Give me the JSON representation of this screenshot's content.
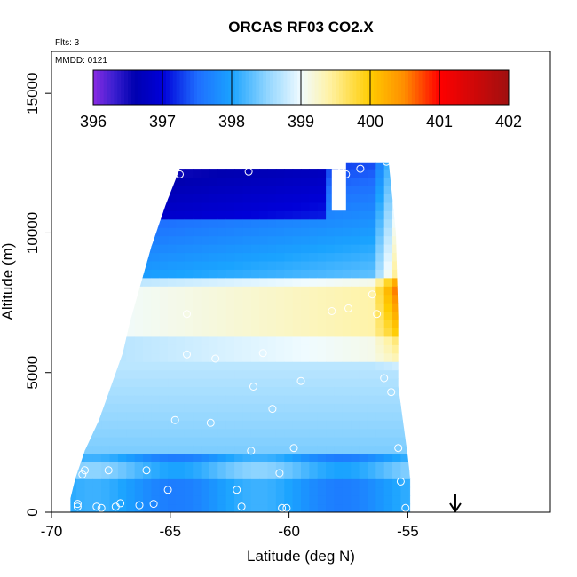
{
  "chart_data": {
    "type": "heatmap",
    "title": "ORCAS RF03 CO2.X",
    "subtitle_flights": "Flts: 3",
    "subtitle_date": "MMDD: 0121",
    "xlabel": "Latitude (deg N)",
    "ylabel": "Altitude (m)",
    "xlim": [
      -70,
      -49
    ],
    "ylim": [
      0,
      16500
    ],
    "x_ticks": [
      -70,
      -65,
      -60,
      -55
    ],
    "x_tick_labels": [
      "-70",
      "-65",
      "-60",
      "-55"
    ],
    "y_ticks": [
      0,
      5000,
      10000,
      15000
    ],
    "y_tick_labels": [
      "0",
      "5000",
      "10000",
      "15000"
    ],
    "colorbar": {
      "min": 396,
      "max": 402,
      "ticks": [
        396,
        397,
        398,
        399,
        400,
        401,
        402
      ],
      "tick_labels": [
        "396",
        "397",
        "398",
        "399",
        "400",
        "401",
        "402"
      ],
      "colors": [
        {
          "value": 396.0,
          "color": "#8a2be2"
        },
        {
          "value": 396.3,
          "color": "#3a1fd0"
        },
        {
          "value": 396.6,
          "color": "#0000b0"
        },
        {
          "value": 397.0,
          "color": "#0000d8"
        },
        {
          "value": 397.5,
          "color": "#1f6dff"
        },
        {
          "value": 398.0,
          "color": "#1aa3ff"
        },
        {
          "value": 398.5,
          "color": "#8ed4ff"
        },
        {
          "value": 399.0,
          "color": "#f0fbff"
        },
        {
          "value": 399.4,
          "color": "#fff3a8"
        },
        {
          "value": 400.0,
          "color": "#ffcc00"
        },
        {
          "value": 400.5,
          "color": "#ff8c00"
        },
        {
          "value": 401.0,
          "color": "#ff0000"
        },
        {
          "value": 402.0,
          "color": "#a01010"
        }
      ]
    },
    "field_boundary": [
      [
        -69.2,
        0
      ],
      [
        -69.2,
        500
      ],
      [
        -69.0,
        1200
      ],
      [
        -68.6,
        2200
      ],
      [
        -68.0,
        3300
      ],
      [
        -67.5,
        4500
      ],
      [
        -67.0,
        5700
      ],
      [
        -66.7,
        6800
      ],
      [
        -66.3,
        8000
      ],
      [
        -65.8,
        9500
      ],
      [
        -65.2,
        11000
      ],
      [
        -64.6,
        12300
      ],
      [
        -57.6,
        12300
      ],
      [
        -57.6,
        12500
      ],
      [
        -55.8,
        12500
      ],
      [
        -55.5,
        10000
      ],
      [
        -55.4,
        7000
      ],
      [
        -55.4,
        4500
      ],
      [
        -55.0,
        2000
      ],
      [
        -54.9,
        1200
      ],
      [
        -54.9,
        0
      ]
    ],
    "high_notch": [
      [
        -58.2,
        12300
      ],
      [
        -57.6,
        12300
      ],
      [
        -57.6,
        10800
      ],
      [
        -58.2,
        10800
      ]
    ],
    "arrow_latitude": -53,
    "sample_points": [
      [
        -68.9,
        200
      ],
      [
        -68.9,
        300
      ],
      [
        -68.1,
        200
      ],
      [
        -67.9,
        150
      ],
      [
        -67.3,
        200
      ],
      [
        -67.1,
        320
      ],
      [
        -66.3,
        250
      ],
      [
        -65.7,
        300
      ],
      [
        -65.1,
        800
      ],
      [
        -66.0,
        1500
      ],
      [
        -67.6,
        1500
      ],
      [
        -68.6,
        1500
      ],
      [
        -68.7,
        1350
      ],
      [
        -62.2,
        800
      ],
      [
        -62.0,
        200
      ],
      [
        -60.4,
        1400
      ],
      [
        -59.8,
        2300
      ],
      [
        -60.1,
        150
      ],
      [
        -60.3,
        150
      ],
      [
        -55.3,
        1100
      ],
      [
        -55.1,
        150
      ],
      [
        -55.4,
        2300
      ],
      [
        -64.8,
        3300
      ],
      [
        -63.3,
        3200
      ],
      [
        -61.6,
        2200
      ],
      [
        -60.7,
        3700
      ],
      [
        -59.5,
        4700
      ],
      [
        -55.7,
        4300
      ],
      [
        -56.0,
        4800
      ],
      [
        -61.5,
        4500
      ],
      [
        -64.3,
        5650
      ],
      [
        -63.1,
        5500
      ],
      [
        -61.1,
        5700
      ],
      [
        -64.3,
        7100
      ],
      [
        -57.5,
        7300
      ],
      [
        -56.3,
        7100
      ],
      [
        -58.2,
        7200
      ],
      [
        -56.5,
        7800
      ],
      [
        -64.6,
        12100
      ],
      [
        -61.7,
        12200
      ],
      [
        -57.8,
        12200
      ],
      [
        -57.6,
        12100
      ],
      [
        -57.0,
        12300
      ],
      [
        -55.9,
        12550
      ]
    ]
  }
}
